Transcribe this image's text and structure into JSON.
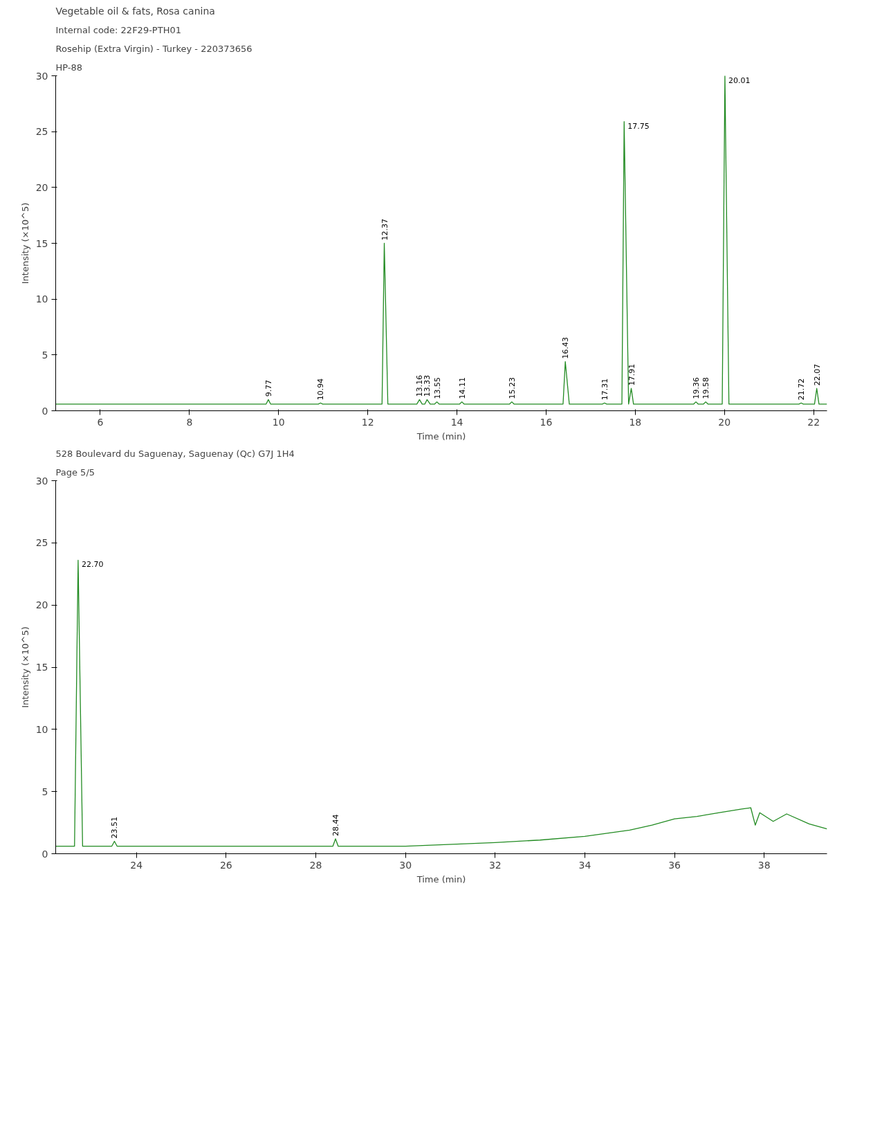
{
  "chart_data": [
    {
      "type": "line",
      "title": "Vegetable oil & fats, Rosa canina",
      "subtitle": "Internal code: 22F29-PTH01",
      "xlabel": "Time (min)",
      "ylabel": "Intensity (×10^5)",
      "xlim": [
        5.0,
        22.3
      ],
      "ylim": [
        0,
        30
      ],
      "xticks": [
        6,
        8,
        10,
        12,
        14,
        16,
        18,
        20,
        22
      ],
      "yticks": [
        0,
        5,
        10,
        15,
        20,
        25,
        30
      ],
      "x": [
        5.0,
        9.72,
        9.77,
        9.82,
        10.89,
        10.94,
        10.99,
        12.32,
        12.37,
        12.45,
        13.1,
        13.16,
        13.22,
        13.28,
        13.33,
        13.4,
        13.5,
        13.55,
        13.6,
        14.06,
        14.11,
        14.16,
        15.18,
        15.23,
        15.28,
        16.38,
        16.43,
        16.52,
        17.26,
        17.31,
        17.36,
        17.7,
        17.75,
        17.85,
        17.91,
        17.96,
        19.31,
        19.36,
        19.41,
        19.53,
        19.58,
        19.63,
        19.95,
        20.01,
        20.1,
        21.67,
        21.72,
        21.77,
        22.02,
        22.07,
        22.12,
        22.3
      ],
      "series": [
        {
          "color": "#228b22",
          "values": [
            0.6,
            0.6,
            1.0,
            0.6,
            0.6,
            0.7,
            0.6,
            0.6,
            15.0,
            0.6,
            0.6,
            1.0,
            0.6,
            0.6,
            1.0,
            0.6,
            0.6,
            0.8,
            0.6,
            0.6,
            0.8,
            0.6,
            0.6,
            0.8,
            0.6,
            0.6,
            4.4,
            0.6,
            0.6,
            0.7,
            0.6,
            0.6,
            25.9,
            0.6,
            2.0,
            0.6,
            0.6,
            0.8,
            0.6,
            0.6,
            0.8,
            0.6,
            0.6,
            30.0,
            0.6,
            0.6,
            0.7,
            0.6,
            0.6,
            2.0,
            0.6,
            0.6
          ]
        }
      ],
      "annotations": [
        "Rosehip (Extra Virgin) - Turkey - 220373656",
        "HP-88",
        {
          "text": "9.77",
          "x": 9.77,
          "y": 1.0
        },
        {
          "text": "10.94",
          "x": 10.94,
          "y": 0.7
        },
        {
          "text": "12.37",
          "x": 12.37,
          "y": 15.0
        },
        {
          "text": "13.16",
          "x": 13.16,
          "y": 1.0
        },
        {
          "text": "13.33",
          "x": 13.33,
          "y": 1.0
        },
        {
          "text": "13.55",
          "x": 13.55,
          "y": 0.8
        },
        {
          "text": "14.11",
          "x": 14.11,
          "y": 0.8
        },
        {
          "text": "15.23",
          "x": 15.23,
          "y": 0.8
        },
        {
          "text": "16.43",
          "x": 16.43,
          "y": 4.4
        },
        {
          "text": "17.31",
          "x": 17.31,
          "y": 0.7
        },
        {
          "text": "17.75",
          "x": 17.75,
          "y": 25.9
        },
        {
          "text": "17.91",
          "x": 17.91,
          "y": 2.0
        },
        {
          "text": "19.36",
          "x": 19.36,
          "y": 0.8
        },
        {
          "text": "19.58",
          "x": 19.58,
          "y": 0.8
        },
        {
          "text": "20.01",
          "x": 20.01,
          "y": 30.0
        },
        {
          "text": "21.72",
          "x": 21.72,
          "y": 0.7
        },
        {
          "text": "22.07",
          "x": 22.07,
          "y": 2.0
        }
      ]
    },
    {
      "type": "line",
      "xlabel": "Time (min)",
      "ylabel": "Intensity (×10^5)",
      "xlim": [
        22.2,
        39.4
      ],
      "ylim": [
        0,
        30
      ],
      "xticks": [
        24,
        26,
        28,
        30,
        32,
        34,
        36,
        38
      ],
      "yticks": [
        0,
        5,
        10,
        15,
        20,
        25,
        30
      ],
      "x": [
        22.2,
        22.62,
        22.7,
        22.8,
        23.45,
        23.51,
        23.57,
        28.38,
        28.44,
        28.5,
        30,
        32,
        33,
        34,
        35,
        35.5,
        36,
        36.5,
        37,
        37.5,
        37.7,
        37.8,
        37.9,
        38.2,
        38.5,
        39,
        39.4
      ],
      "series": [
        {
          "color": "#228b22",
          "values": [
            0.6,
            0.6,
            23.6,
            0.6,
            0.6,
            1.0,
            0.6,
            0.6,
            1.2,
            0.6,
            0.6,
            0.9,
            1.1,
            1.4,
            1.9,
            2.3,
            2.8,
            3.0,
            3.3,
            3.6,
            3.7,
            2.3,
            3.3,
            2.6,
            3.2,
            2.4,
            2.0
          ]
        }
      ],
      "annotations": [
        {
          "text": "22.70",
          "x": 22.7,
          "y": 23.6
        },
        {
          "text": "23.51",
          "x": 23.51,
          "y": 1.0
        },
        {
          "text": "28.44",
          "x": 28.44,
          "y": 1.2
        },
        "528 Boulevard du Saguenay, Saguenay (Qc) G7J 1H4",
        "Page 5/5"
      ]
    }
  ]
}
